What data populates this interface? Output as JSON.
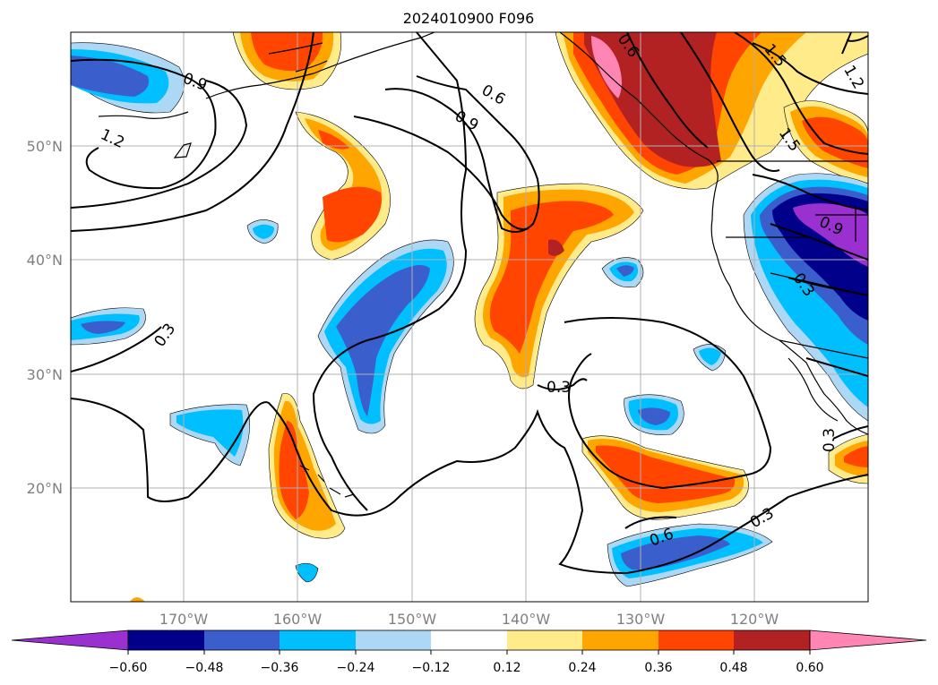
{
  "title": "2024010900 F096",
  "map": {
    "lat_ticks": [
      "50°N",
      "40°N",
      "30°N",
      "20°N"
    ],
    "lon_ticks": [
      "170°W",
      "160°W",
      "150°W",
      "140°W",
      "130°W",
      "120°W"
    ],
    "lat_range": [
      10,
      60
    ],
    "lon_range": [
      -180,
      -110
    ],
    "grid": true
  },
  "colorbar": {
    "ticks": [
      "−0.60",
      "−0.48",
      "−0.36",
      "−0.24",
      "−0.12",
      "0.12",
      "0.24",
      "0.36",
      "0.48",
      "0.60"
    ],
    "colors": [
      "#9b30d0",
      "#00008b",
      "#3a5fcd",
      "#00bfff",
      "#add8f5",
      "#ffffff",
      "#ffeb8a",
      "#ffa500",
      "#ff4500",
      "#b22222",
      "#ff86b4"
    ],
    "extend": "both"
  },
  "contour_labels": [
    "0.9",
    "1.2",
    "0.3",
    "0.6",
    "0.9",
    "0.6",
    "1.5",
    "1.2",
    "0.3",
    "0.6",
    "0.3",
    "0.3",
    "0.9",
    "0.3",
    "1.5"
  ],
  "colors": {
    "grid": "#b0b0b0",
    "coast": "#000000",
    "contour": "#000000"
  }
}
